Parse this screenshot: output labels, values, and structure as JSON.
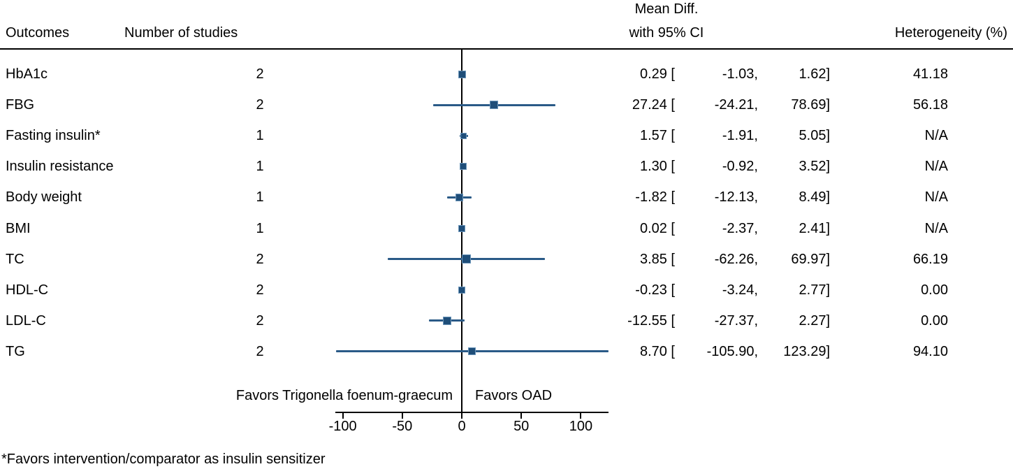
{
  "header": {
    "outcomes": "Outcomes",
    "studies": "Number of studies",
    "effect_line1": "Mean Diff.",
    "effect_line2": "with 95% CI",
    "heterogeneity": "Heterogeneity (%)"
  },
  "chart_data": {
    "type": "forest",
    "title": "",
    "xlabel": "",
    "xlim": [
      -105.9,
      123.29
    ],
    "x_ticks": [
      -100,
      -50,
      0,
      50,
      100
    ],
    "zero_line": 0,
    "favors_left": "Favors Trigonella foenum-graecum",
    "favors_right": "Favors OAD",
    "footnote": "*Favors intervention/comparator as insulin sensitizer",
    "rows": [
      {
        "outcome": "HbA1c",
        "n_studies": "2",
        "estimate": 0.29,
        "ci_lower": -1.03,
        "ci_upper": 1.62,
        "heterogeneity": "41.18",
        "marker_size": 11
      },
      {
        "outcome": "FBG",
        "n_studies": "2",
        "estimate": 27.24,
        "ci_lower": -24.21,
        "ci_upper": 78.69,
        "heterogeneity": "56.18",
        "marker_size": 12
      },
      {
        "outcome": "Fasting insulin*",
        "n_studies": "1",
        "estimate": 1.57,
        "ci_lower": -1.91,
        "ci_upper": 5.05,
        "heterogeneity": "N/A",
        "marker_size": 9
      },
      {
        "outcome": "Insulin resistance",
        "n_studies": "1",
        "estimate": 1.3,
        "ci_lower": -0.92,
        "ci_upper": 3.52,
        "heterogeneity": "N/A",
        "marker_size": 10
      },
      {
        "outcome": "Body weight",
        "n_studies": "1",
        "estimate": -1.82,
        "ci_lower": -12.13,
        "ci_upper": 8.49,
        "heterogeneity": "N/A",
        "marker_size": 11
      },
      {
        "outcome": "BMI",
        "n_studies": "1",
        "estimate": 0.02,
        "ci_lower": -2.37,
        "ci_upper": 2.41,
        "heterogeneity": "N/A",
        "marker_size": 10
      },
      {
        "outcome": "TC",
        "n_studies": "2",
        "estimate": 3.85,
        "ci_lower": -62.26,
        "ci_upper": 69.97,
        "heterogeneity": "66.19",
        "marker_size": 13
      },
      {
        "outcome": "HDL-C",
        "n_studies": "2",
        "estimate": -0.23,
        "ci_lower": -3.24,
        "ci_upper": 2.77,
        "heterogeneity": "0.00",
        "marker_size": 10
      },
      {
        "outcome": "LDL-C",
        "n_studies": "2",
        "estimate": -12.55,
        "ci_lower": -27.37,
        "ci_upper": 2.27,
        "heterogeneity": "0.00",
        "marker_size": 12
      },
      {
        "outcome": "TG",
        "n_studies": "2",
        "estimate": 8.7,
        "ci_lower": -105.9,
        "ci_upper": 123.29,
        "heterogeneity": "94.10",
        "marker_size": 11
      }
    ]
  },
  "colors": {
    "marker": "#1f4e79",
    "marker_border": "#6c96ba",
    "ci_line": "#2a5a87",
    "axis": "#000000",
    "text": "#000000"
  }
}
